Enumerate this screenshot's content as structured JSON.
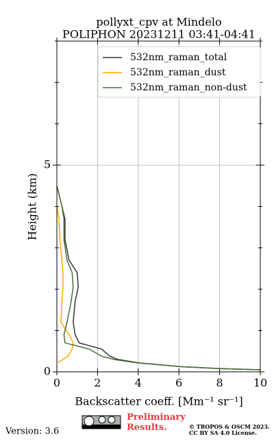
{
  "chart_data": {
    "type": "profile",
    "title": "pollyxt_cpv at Mindelo",
    "subtitle": "POLIPHON 20231211 03:41-04:41",
    "x_label": "Backscatter coeff. [Mm⁻¹ sr⁻¹]",
    "y_label": "Height (km)",
    "heights": [
      4.5,
      4.0,
      3.7,
      3.2,
      2.7,
      2.4,
      2.05,
      1.7,
      1.2,
      0.9,
      0.7,
      0.55,
      0.38,
      0.3,
      0.22,
      0.13,
      0.08,
      0.05
    ],
    "series": [
      {
        "name": "532nm_raman_total",
        "color": "#333333",
        "values": [
          0,
          0.25,
          0.4,
          0.4,
          0.6,
          1.0,
          1.05,
          0.9,
          0.8,
          0.9,
          1.1,
          2.2,
          2.6,
          3.0,
          4.0,
          6.0,
          8.0,
          10.0
        ]
      },
      {
        "name": "532nm_raman_dust",
        "color": "#ffa500",
        "values": [
          null,
          0,
          0.1,
          0.15,
          0.25,
          0.3,
          0.3,
          0.25,
          0.2,
          0.6,
          0.8,
          0.75,
          0.55,
          0.3,
          0.05,
          null,
          null,
          null
        ]
      },
      {
        "name": "532nm_raman_non-dust",
        "color": "#4a6b30",
        "values": [
          0,
          0.25,
          0.35,
          0.35,
          0.5,
          0.75,
          0.8,
          0.7,
          0.5,
          0.35,
          0.4,
          1.6,
          2.2,
          2.8,
          3.9,
          6.0,
          8.0,
          10.0
        ]
      }
    ],
    "xlim": [
      0,
      10
    ],
    "xticks": [
      0,
      2,
      4,
      6,
      8,
      10
    ],
    "ylim": [
      0,
      8
    ],
    "yticks": [
      0,
      5
    ],
    "yminorticks": [
      1,
      2,
      3,
      4,
      6,
      7,
      8
    ],
    "grid": true,
    "legend": "upper right",
    "footer": {
      "version": "Version: 3.6",
      "preliminary": "Preliminary Results.",
      "copyright": "© TROPOS & OSCM 2023.",
      "license": "CC BY SA 4.0 License."
    }
  }
}
